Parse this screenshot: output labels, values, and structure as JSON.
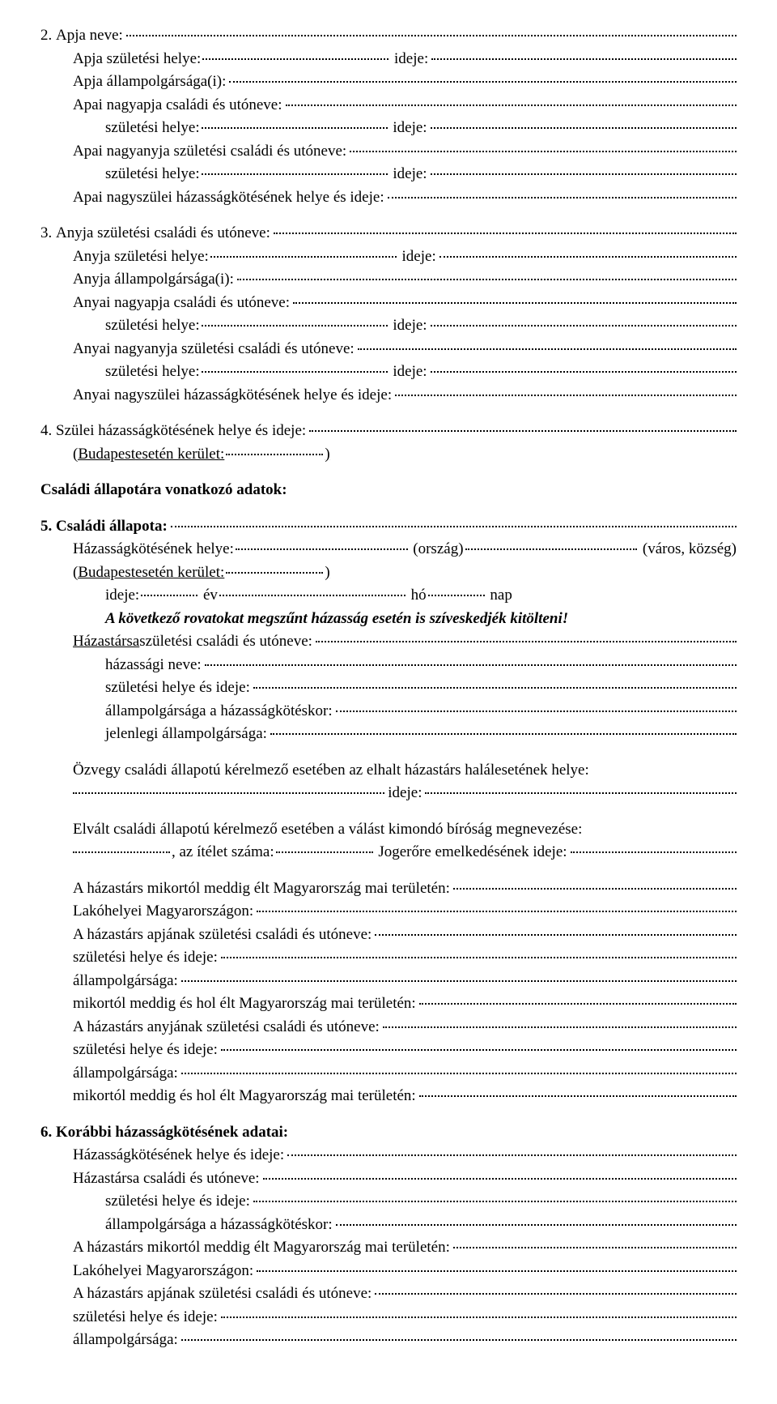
{
  "s2": {
    "num": "2.",
    "apja_neve": "Apja neve:",
    "apja_szh": "Apja születési helye:",
    "ideje": "ideje:",
    "apja_allam": "Apja állampolgársága(i):",
    "apai_nagyapja": "Apai nagyapja családi és utóneve:",
    "szh": "születési helye:",
    "apai_nagyanya": "Apai nagyanyja születési családi és utóneve:",
    "apai_nagysz_haz": "Apai nagyszülei házasságkötésének helye és ideje:"
  },
  "s3": {
    "num": "3.",
    "anyja_csal": "Anyja születési családi és utóneve:",
    "anyja_szh": "Anyja születési helye:",
    "ideje": "ideje:",
    "anyja_allam": "Anyja állampolgársága(i):",
    "anyai_nagyapja": "Anyai nagyapja családi és utóneve:",
    "szh": "születési helye:",
    "anyai_nagyanya": "Anyai nagyanyja születési családi és utóneve:",
    "anyai_nagysz_haz": "Anyai nagyszülei házasságkötésének helye és ideje:"
  },
  "s4": {
    "num": "4.",
    "szulei_haz": "Szülei házasságkötésének helye és ideje:",
    "bp_kerulet_pre": "(Budapest",
    "bp_kerulet_mid": " esetén kerület:",
    "bp_kerulet_end": ")"
  },
  "section_csaladi": "Családi állapotára vonatkozó adatok:",
  "s5": {
    "num": "5.",
    "csaladi_allapota": "Családi állapota:",
    "haz_helye": "Házasságkötésének helye:",
    "orszag": "(ország)",
    "varos": "(város, község)",
    "bp_kerulet_pre": "(Budapest",
    "bp_kerulet_mid": " esetén kerület:",
    "bp_kerulet_end": ")",
    "ideje_label": "ideje:",
    "ev": "év",
    "ho": "hó",
    "nap": "nap",
    "megjegyzes": "A következő rovatokat megszűnt házasság esetén is szíveskedjék kitölteni!",
    "hazastarsa_pre": "Házastársa",
    "hazastarsa_mid": " születési családi és utóneve:",
    "haz_neve": "házassági neve:",
    "szh_ideje": "születési helye és ideje:",
    "allam_hazkotes": "állampolgársága a házasságkötéskor:",
    "jelen_allam": "jelenlegi állampolgársága:",
    "ozvegy": "Özvegy családi állapotú kérelmező esetében az elhalt házastárs halálesetének helye:",
    "ideje_suffix": "ideje:",
    "elvalt": "Elvált családi állapotú kérelmező esetében a válást kimondó bíróság megnevezése:",
    "az_itelet": ", az ítélet száma:",
    "jogerore": "Jogerőre emelkedésének ideje:",
    "haz_mikortol": "A házastárs mikortól meddig élt Magyarország mai területén:",
    "lakohely_mo": "Lakóhelyei Magyarországon:",
    "haz_apja_csal": "A házastárs apjának születési családi és utóneve:",
    "szh_ideje2": "születési helye és ideje:",
    "allampolg": "állampolgársága:",
    "mikortol_hol": "mikortól meddig és hol élt Magyarország mai területén:",
    "haz_anyja_csal": "A házastárs anyjának születési családi és utóneve:"
  },
  "s6": {
    "num": "6.",
    "korabbi_haz": "Korábbi házasságkötésének adatai:",
    "haz_helye_ideje": "Házasságkötésének helye és ideje:",
    "hazastarsa_csal": "Házastársa családi és utóneve:",
    "szh_ideje": "születési helye és ideje:",
    "allam_hazkotes": "állampolgársága a házasságkötéskor:",
    "haz_mikortol": "A házastárs mikortól meddig élt Magyarország mai területén:",
    "lakohely_mo": "Lakóhelyei Magyarországon:",
    "haz_apja_csal": "A házastárs apjának születési családi és utóneve:",
    "szh_ideje2": "születési helye és ideje:",
    "allampolg": "állampolgársága:"
  }
}
